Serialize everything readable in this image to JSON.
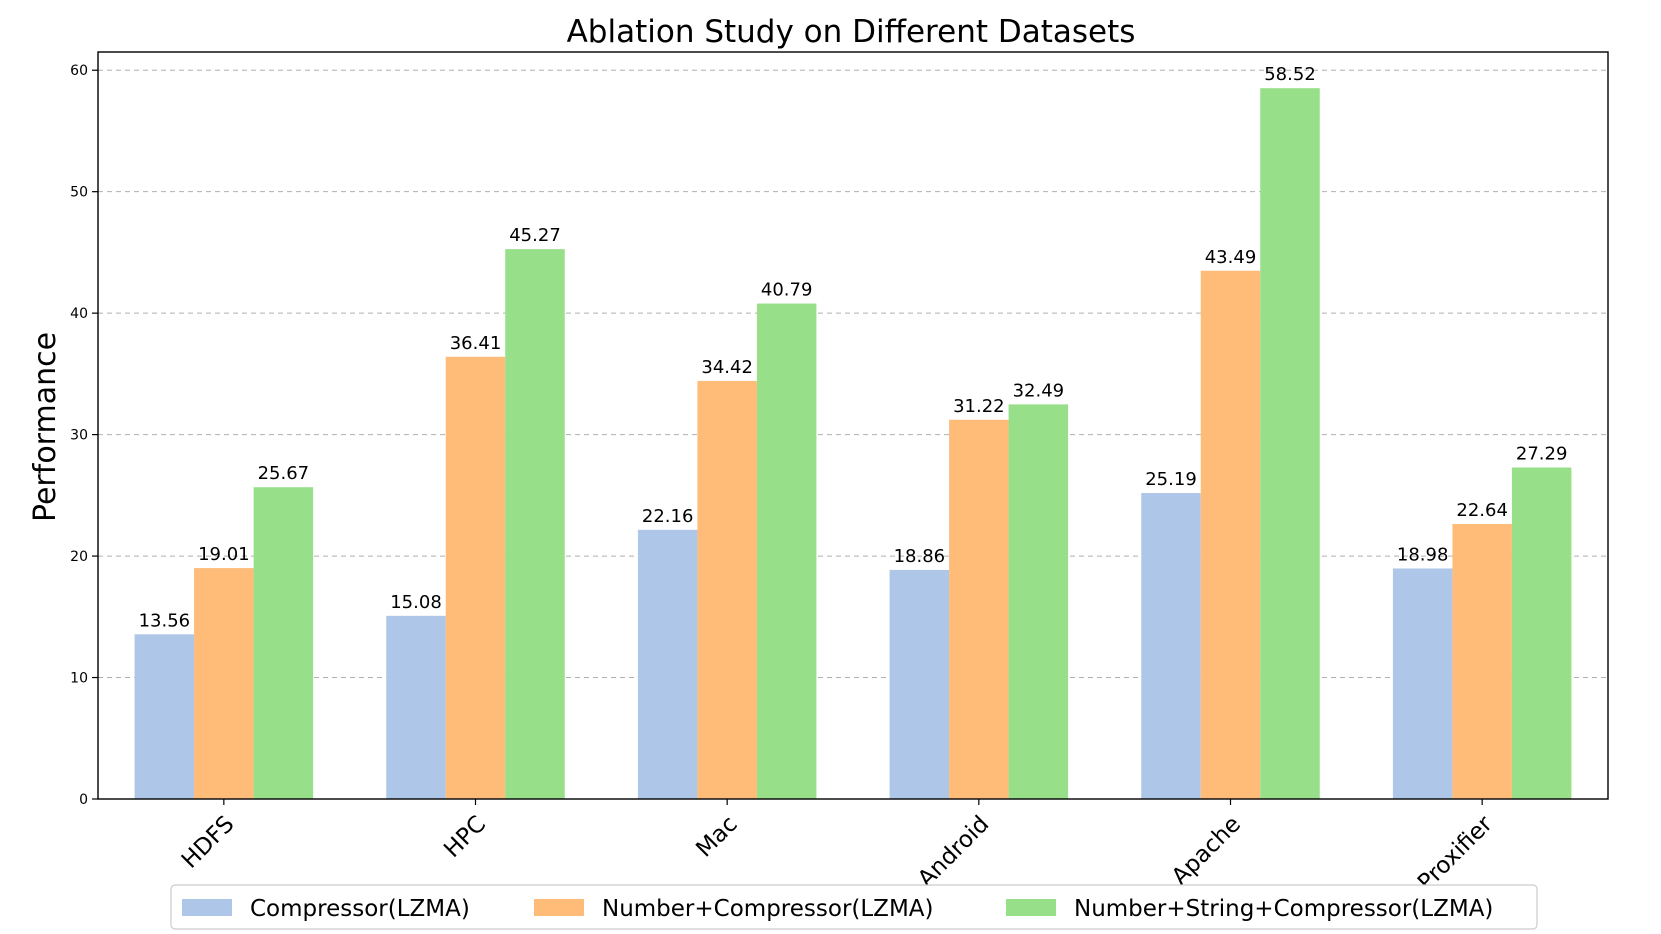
{
  "chart_data": {
    "type": "bar",
    "title": "Ablation Study on Different Datasets",
    "xlabel": "",
    "ylabel": "Performance",
    "ylim": [
      0,
      61.5
    ],
    "yticks": [
      0,
      10,
      20,
      30,
      40,
      50,
      60
    ],
    "grid": true,
    "legend_position": "bottom-center",
    "categories": [
      "HDFS",
      "HPC",
      "Mac",
      "Android",
      "Apache",
      "Proxifier"
    ],
    "series": [
      {
        "name": "Compressor(LZMA)",
        "color": "#aec7e8",
        "values": [
          13.56,
          15.08,
          22.16,
          18.86,
          25.19,
          18.98
        ]
      },
      {
        "name": "Number+Compressor(LZMA)",
        "color": "#ffbb78",
        "values": [
          19.01,
          36.41,
          34.42,
          31.22,
          43.49,
          22.64
        ]
      },
      {
        "name": "Number+String+Compressor(LZMA)",
        "color": "#98df8a",
        "values": [
          25.67,
          45.27,
          40.79,
          32.49,
          58.52,
          27.29
        ]
      }
    ]
  }
}
